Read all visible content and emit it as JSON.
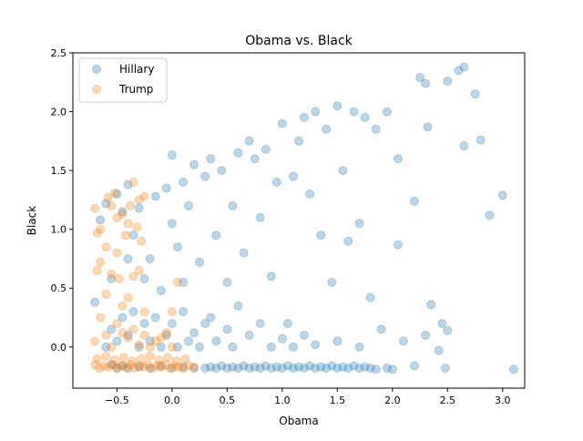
{
  "chart_data": {
    "type": "scatter",
    "title": "Obama vs. Black",
    "xlabel": "Obama",
    "ylabel": "Black",
    "xlim": [
      -0.9,
      3.2
    ],
    "ylim": [
      -0.35,
      2.5
    ],
    "x_ticks": [
      -0.5,
      0.0,
      0.5,
      1.0,
      1.5,
      2.0,
      2.5,
      3.0
    ],
    "x_tick_labels": [
      "−0.5",
      "0.0",
      "0.5",
      "1.0",
      "1.5",
      "2.0",
      "2.5",
      "3.0"
    ],
    "y_ticks": [
      0.0,
      0.5,
      1.0,
      1.5,
      2.0,
      2.5
    ],
    "y_tick_labels": [
      "0.0",
      "0.5",
      "1.0",
      "1.5",
      "2.0",
      "2.5"
    ],
    "grid": false,
    "legend_position": "top-left",
    "series": [
      {
        "name": "Hillary",
        "color": "#1f77b4",
        "points": [
          [
            -0.7,
            0.38
          ],
          [
            -0.65,
            1.08
          ],
          [
            -0.6,
            1.22
          ],
          [
            -0.55,
            0.58
          ],
          [
            -0.5,
            1.3
          ],
          [
            -0.45,
            1.15
          ],
          [
            -0.4,
            1.38
          ],
          [
            -0.4,
            0.75
          ],
          [
            -0.35,
            0.95
          ],
          [
            -0.3,
            1.18
          ],
          [
            -0.25,
            0.58
          ],
          [
            -0.2,
            0.75
          ],
          [
            -0.15,
            1.28
          ],
          [
            -0.1,
            0.48
          ],
          [
            -0.05,
            1.35
          ],
          [
            0.0,
            1.63
          ],
          [
            0.0,
            1.05
          ],
          [
            0.05,
            0.85
          ],
          [
            0.1,
            1.4
          ],
          [
            0.1,
            0.55
          ],
          [
            0.15,
            1.2
          ],
          [
            0.2,
            1.55
          ],
          [
            0.25,
            0.72
          ],
          [
            0.3,
            1.45
          ],
          [
            0.35,
            1.6
          ],
          [
            0.4,
            0.95
          ],
          [
            0.45,
            1.5
          ],
          [
            0.5,
            0.55
          ],
          [
            0.55,
            1.2
          ],
          [
            0.6,
            1.65
          ],
          [
            0.65,
            0.8
          ],
          [
            0.7,
            1.75
          ],
          [
            0.75,
            1.6
          ],
          [
            0.8,
            1.1
          ],
          [
            0.85,
            1.68
          ],
          [
            0.9,
            0.6
          ],
          [
            0.95,
            1.4
          ],
          [
            1.0,
            1.9
          ],
          [
            1.05,
            0.2
          ],
          [
            1.1,
            1.45
          ],
          [
            1.15,
            1.75
          ],
          [
            1.2,
            1.95
          ],
          [
            1.25,
            1.3
          ],
          [
            1.3,
            2.0
          ],
          [
            1.35,
            0.95
          ],
          [
            1.4,
            1.85
          ],
          [
            1.45,
            0.55
          ],
          [
            1.5,
            2.05
          ],
          [
            1.55,
            1.5
          ],
          [
            1.6,
            0.9
          ],
          [
            1.65,
            2.0
          ],
          [
            1.7,
            1.05
          ],
          [
            1.75,
            1.95
          ],
          [
            1.8,
            0.42
          ],
          [
            1.85,
            1.85
          ],
          [
            1.95,
            2.0
          ],
          [
            2.05,
            1.6
          ],
          [
            2.05,
            0.87
          ],
          [
            2.2,
            1.24
          ],
          [
            2.25,
            2.29
          ],
          [
            2.3,
            2.24
          ],
          [
            2.32,
            1.87
          ],
          [
            2.35,
            0.36
          ],
          [
            2.45,
            0.2
          ],
          [
            2.5,
            2.26
          ],
          [
            2.6,
            2.35
          ],
          [
            2.65,
            2.38
          ],
          [
            2.65,
            1.71
          ],
          [
            2.75,
            2.15
          ],
          [
            2.8,
            1.76
          ],
          [
            2.88,
            1.12
          ],
          [
            3.0,
            1.29
          ],
          [
            -0.6,
            0.0
          ],
          [
            -0.55,
            0.15
          ],
          [
            -0.5,
            0.05
          ],
          [
            -0.45,
            0.25
          ],
          [
            -0.4,
            0.1
          ],
          [
            -0.35,
            0.3
          ],
          [
            -0.3,
            0.0
          ],
          [
            -0.25,
            0.2
          ],
          [
            -0.2,
            0.05
          ],
          [
            -0.15,
            0.25
          ],
          [
            -0.1,
            0.0
          ],
          [
            -0.05,
            0.1
          ],
          [
            0.0,
            0.2
          ],
          [
            0.05,
            0.0
          ],
          [
            0.1,
            0.3
          ],
          [
            0.15,
            0.05
          ],
          [
            0.2,
            0.12
          ],
          [
            0.25,
            0.0
          ],
          [
            0.3,
            0.2
          ],
          [
            0.35,
            0.25
          ],
          [
            0.4,
            0.05
          ],
          [
            0.5,
            0.15
          ],
          [
            0.55,
            0.0
          ],
          [
            0.6,
            0.35
          ],
          [
            0.7,
            0.1
          ],
          [
            0.8,
            0.2
          ],
          [
            0.9,
            0.0
          ],
          [
            1.0,
            0.07
          ],
          [
            1.1,
            0.0
          ],
          [
            1.2,
            0.1
          ],
          [
            1.3,
            0.02
          ],
          [
            1.5,
            0.05
          ],
          [
            1.7,
            0.0
          ],
          [
            1.9,
            0.15
          ],
          [
            2.1,
            0.05
          ],
          [
            2.3,
            0.1
          ],
          [
            2.42,
            -0.03
          ],
          [
            2.5,
            0.14
          ],
          [
            -0.55,
            -0.15
          ],
          [
            -0.5,
            -0.18
          ],
          [
            -0.45,
            -0.16
          ],
          [
            -0.4,
            -0.18
          ],
          [
            -0.3,
            -0.17
          ],
          [
            -0.2,
            -0.18
          ],
          [
            -0.1,
            -0.16
          ],
          [
            0.0,
            -0.18
          ],
          [
            0.1,
            -0.17
          ],
          [
            0.2,
            -0.18
          ],
          [
            0.3,
            -0.18
          ],
          [
            0.35,
            -0.17
          ],
          [
            0.4,
            -0.18
          ],
          [
            0.45,
            -0.16
          ],
          [
            0.5,
            -0.18
          ],
          [
            0.55,
            -0.17
          ],
          [
            0.6,
            -0.18
          ],
          [
            0.65,
            -0.16
          ],
          [
            0.7,
            -0.18
          ],
          [
            0.75,
            -0.17
          ],
          [
            0.8,
            -0.18
          ],
          [
            0.85,
            -0.16
          ],
          [
            0.9,
            -0.18
          ],
          [
            0.95,
            -0.17
          ],
          [
            1.0,
            -0.18
          ],
          [
            1.05,
            -0.16
          ],
          [
            1.1,
            -0.18
          ],
          [
            1.15,
            -0.17
          ],
          [
            1.2,
            -0.18
          ],
          [
            1.25,
            -0.16
          ],
          [
            1.3,
            -0.18
          ],
          [
            1.35,
            -0.17
          ],
          [
            1.4,
            -0.18
          ],
          [
            1.45,
            -0.16
          ],
          [
            1.5,
            -0.18
          ],
          [
            1.55,
            -0.17
          ],
          [
            1.6,
            -0.18
          ],
          [
            1.65,
            -0.16
          ],
          [
            1.7,
            -0.18
          ],
          [
            1.75,
            -0.17
          ],
          [
            1.8,
            -0.18
          ],
          [
            1.85,
            -0.19
          ],
          [
            1.95,
            -0.18
          ],
          [
            2.0,
            -0.19
          ],
          [
            2.2,
            -0.16
          ],
          [
            2.48,
            -0.18
          ],
          [
            3.1,
            -0.19
          ]
        ]
      },
      {
        "name": "Trump",
        "color": "#ff7f0e",
        "points": [
          [
            -0.7,
            1.18
          ],
          [
            -0.68,
            0.97
          ],
          [
            -0.65,
            1.0
          ],
          [
            -0.6,
            0.85
          ],
          [
            -0.58,
            1.27
          ],
          [
            -0.55,
            1.2
          ],
          [
            -0.52,
            1.31
          ],
          [
            -0.5,
            1.1
          ],
          [
            -0.48,
            0.58
          ],
          [
            -0.45,
            1.13
          ],
          [
            -0.42,
            0.95
          ],
          [
            -0.4,
            1.05
          ],
          [
            -0.38,
            1.2
          ],
          [
            -0.35,
            1.4
          ],
          [
            -0.32,
            1.02
          ],
          [
            -0.3,
            1.25
          ],
          [
            -0.28,
            0.9
          ],
          [
            -0.25,
            1.28
          ],
          [
            -0.68,
            0.65
          ],
          [
            -0.65,
            0.72
          ],
          [
            -0.6,
            0.45
          ],
          [
            -0.55,
            0.62
          ],
          [
            -0.5,
            0.8
          ],
          [
            -0.45,
            0.35
          ],
          [
            -0.4,
            0.42
          ],
          [
            -0.35,
            0.6
          ],
          [
            -0.3,
            0.65
          ],
          [
            -0.25,
            0.3
          ],
          [
            0.0,
            0.3
          ],
          [
            0.05,
            0.55
          ],
          [
            -0.7,
            0.05
          ],
          [
            -0.65,
            0.25
          ],
          [
            -0.6,
            0.1
          ],
          [
            -0.55,
            0.0
          ],
          [
            -0.5,
            0.2
          ],
          [
            -0.45,
            0.12
          ],
          [
            -0.4,
            0.08
          ],
          [
            -0.35,
            0.15
          ],
          [
            -0.3,
            0.02
          ],
          [
            -0.25,
            0.1
          ],
          [
            -0.2,
            0.0
          ],
          [
            -0.15,
            0.05
          ],
          [
            -0.1,
            0.08
          ],
          [
            -0.05,
            0.12
          ],
          [
            0.0,
            0.0
          ],
          [
            -0.7,
            -0.15
          ],
          [
            -0.66,
            -0.18
          ],
          [
            -0.62,
            -0.16
          ],
          [
            -0.58,
            -0.17
          ],
          [
            -0.54,
            -0.15
          ],
          [
            -0.5,
            -0.18
          ],
          [
            -0.46,
            -0.16
          ],
          [
            -0.42,
            -0.17
          ],
          [
            -0.38,
            -0.15
          ],
          [
            -0.34,
            -0.18
          ],
          [
            -0.3,
            -0.16
          ],
          [
            -0.26,
            -0.17
          ],
          [
            -0.22,
            -0.15
          ],
          [
            -0.18,
            -0.18
          ],
          [
            -0.14,
            -0.16
          ],
          [
            -0.1,
            -0.17
          ],
          [
            -0.06,
            -0.15
          ],
          [
            -0.02,
            -0.18
          ],
          [
            0.02,
            -0.16
          ],
          [
            0.06,
            -0.17
          ],
          [
            0.1,
            -0.18
          ],
          [
            0.15,
            -0.16
          ],
          [
            0.2,
            -0.17
          ],
          [
            -0.68,
            -0.1
          ],
          [
            -0.6,
            -0.08
          ],
          [
            -0.52,
            -0.11
          ],
          [
            -0.44,
            -0.09
          ],
          [
            -0.36,
            -0.12
          ],
          [
            -0.28,
            -0.1
          ],
          [
            -0.2,
            -0.08
          ],
          [
            -0.12,
            -0.11
          ],
          [
            -0.04,
            -0.09
          ],
          [
            0.04,
            -0.12
          ],
          [
            0.12,
            -0.1
          ]
        ]
      }
    ]
  }
}
